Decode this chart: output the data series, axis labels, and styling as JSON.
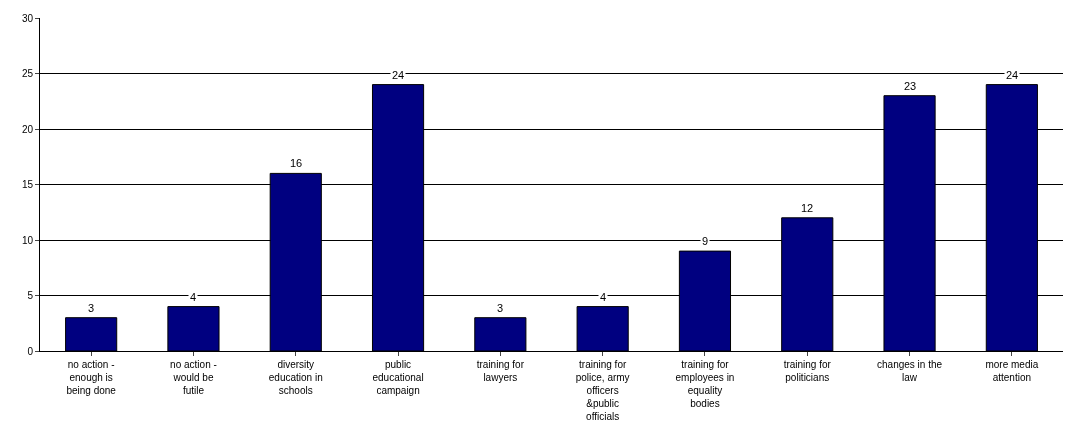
{
  "chart_data": {
    "type": "bar",
    "categories": [
      "no action - enough is being done",
      "no action - would be futile",
      "diversity education in schools",
      "public educational campaign",
      "training for lawyers",
      "training for police, army officers &public officials",
      "training for employees in equality bodies",
      "training for politicians",
      "changes in the law",
      "more media attention"
    ],
    "values": [
      3,
      4,
      16,
      24,
      3,
      4,
      9,
      12,
      23,
      24
    ],
    "color": "#000080",
    "ylim": [
      0,
      30
    ],
    "yticks": [
      0,
      5,
      10,
      15,
      20,
      25,
      30
    ],
    "grid": "y",
    "data_labels": true
  }
}
